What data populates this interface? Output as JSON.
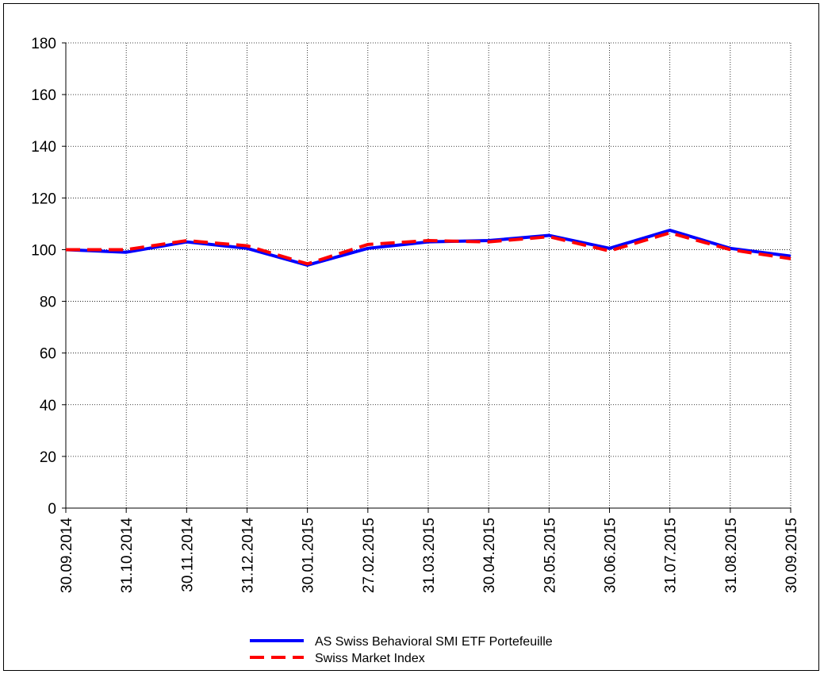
{
  "chart_data": {
    "type": "line",
    "categories": [
      "30.09.2014",
      "31.10.2014",
      "30.11.2014",
      "31.12.2014",
      "30.01.2015",
      "27.02.2015",
      "31.03.2015",
      "30.04.2015",
      "29.05.2015",
      "30.06.2015",
      "31.07.2015",
      "31.08.2015",
      "30.09.2015"
    ],
    "series": [
      {
        "name": "AS Swiss Behavioral SMI ETF Portefeuille",
        "color": "#0000ff",
        "dash": false,
        "values": [
          100,
          99,
          103,
          100.5,
          94,
          100.5,
          103,
          103.5,
          105.5,
          100.5,
          107.5,
          100.5,
          97.5
        ]
      },
      {
        "name": "Swiss Market Index",
        "color": "#ff0000",
        "dash": true,
        "values": [
          100,
          100,
          103.5,
          101.5,
          94.5,
          102,
          103.5,
          103,
          105,
          99.5,
          106.5,
          100,
          96.5
        ]
      }
    ],
    "ylim": [
      0,
      180
    ],
    "yticks": [
      0,
      20,
      40,
      60,
      80,
      100,
      120,
      140,
      160,
      180
    ],
    "grid": true
  }
}
